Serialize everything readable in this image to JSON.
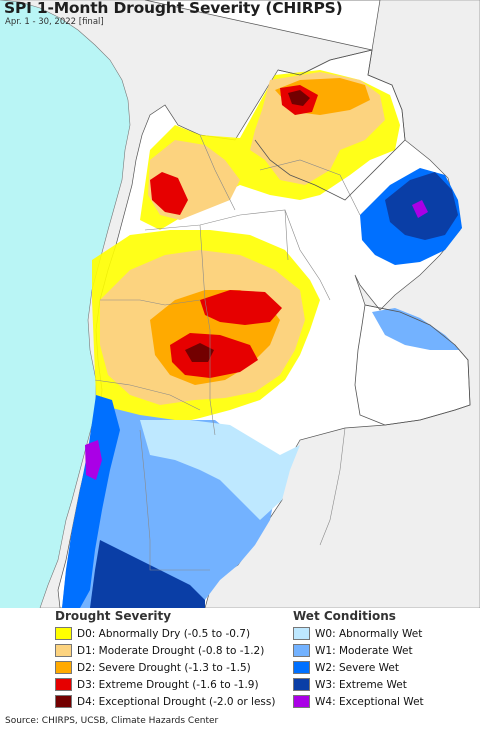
{
  "title": "SPI 1-Month Drought Severity (CHIRPS)",
  "subtitle": "Apr. 1 - 30, 2022 [final]",
  "legend_drought": {
    "heading": "Drought Severity",
    "items": [
      {
        "label": "D0: Abnormally Dry (-0.5 to -0.7)",
        "color": "#ffff00"
      },
      {
        "label": "D1: Moderate Drought (-0.8 to -1.2)",
        "color": "#fcd37f"
      },
      {
        "label": "D2: Severe Drought (-1.3 to -1.5)",
        "color": "#ffaa00"
      },
      {
        "label": "D3: Extreme Drought (-1.6 to -1.9)",
        "color": "#e60000"
      },
      {
        "label": "D4: Exceptional Drought (-2.0 or less)",
        "color": "#730000"
      }
    ]
  },
  "legend_wet": {
    "heading": "Wet Conditions",
    "items": [
      {
        "label": "W0: Abnormally Wet",
        "color": "#bee8ff"
      },
      {
        "label": "W1: Moderate Wet",
        "color": "#73b2ff"
      },
      {
        "label": "W2: Severe Wet",
        "color": "#0070ff"
      },
      {
        "label": "W3: Extreme Wet",
        "color": "#0a3ea6"
      },
      {
        "label": "W4: Exceptional Wet",
        "color": "#aa00e6"
      }
    ]
  },
  "source": "Source: CHIRPS, UCSB, Climate Hazards Center",
  "colors": {
    "ocean": "#b9f5f5",
    "outside_land": "#efefef",
    "land": "#ffffff",
    "border": "#666666"
  }
}
